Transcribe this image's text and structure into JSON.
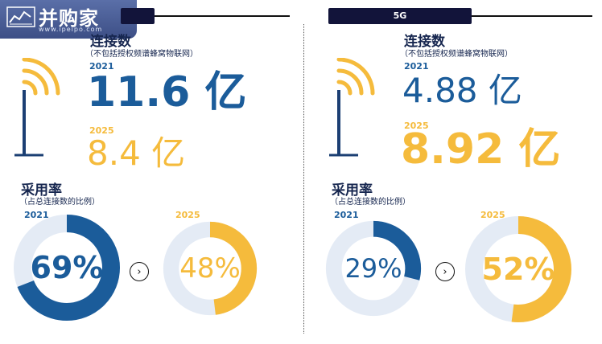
{
  "watermark": {
    "brand": "并购家",
    "url": "www.ipeipo.com"
  },
  "colors": {
    "blue": "#1b5c9a",
    "gold": "#f5bb3c",
    "track": "#e4ebf5",
    "navy": "#12143a"
  },
  "left": {
    "connections_label": "连接数",
    "connections_note": "（不包括授权频谱蜂窝物联网）",
    "year_2021": "2021",
    "value_2021": "11.6 亿",
    "year_2025": "2025",
    "value_2025": "8.4 亿",
    "adoption_label": "采用率",
    "adoption_note": "（占总连接数的比例）",
    "ring_2021": {
      "year": "2021",
      "label": "69%",
      "value": 0.69,
      "color_role": "blue"
    },
    "ring_2025": {
      "year": "2025",
      "label": "48%",
      "value": 0.48,
      "color_role": "gold"
    }
  },
  "right": {
    "tag": "5G",
    "connections_label": "连接数",
    "connections_note": "（不包括授权频谱蜂窝物联网）",
    "year_2021": "2021",
    "value_2021": "4.88 亿",
    "year_2025": "2025",
    "value_2025": "8.92 亿",
    "adoption_label": "采用率",
    "adoption_note": "（占总连接数的比例）",
    "ring_2021": {
      "year": "2021",
      "label": "29%",
      "value": 0.29,
      "color_role": "blue"
    },
    "ring_2025": {
      "year": "2025",
      "label": "52%",
      "value": 0.52,
      "color_role": "gold"
    }
  },
  "arrow_icon": "chevron-right-icon"
}
